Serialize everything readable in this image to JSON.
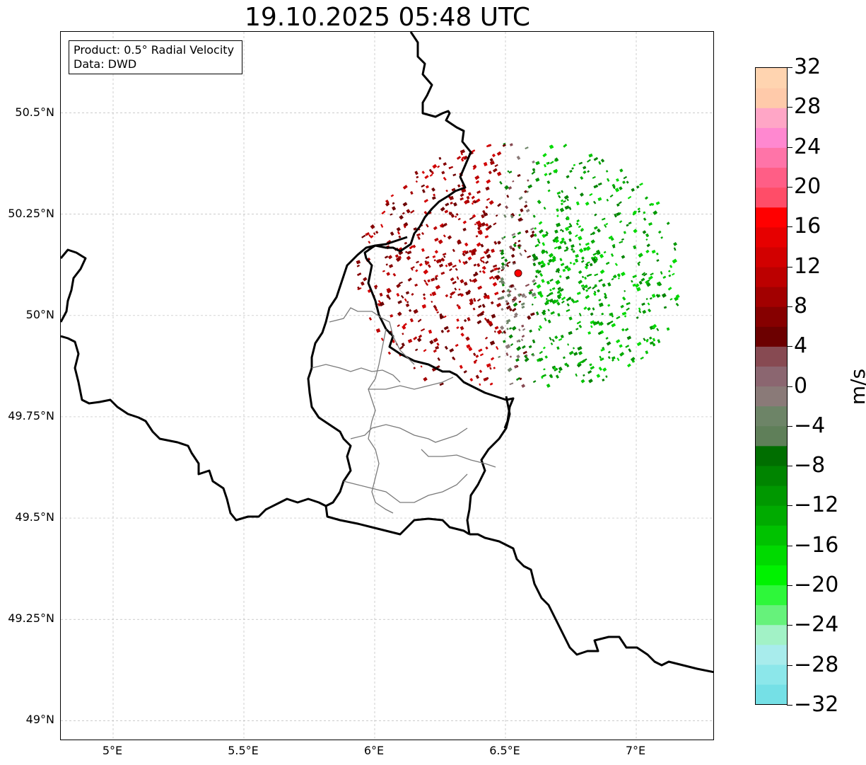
{
  "title": "19.10.2025 05:48 UTC",
  "legend": {
    "product": "Product: 0.5° Radial Velocity",
    "data": "Data: DWD"
  },
  "map": {
    "lon_range": [
      4.8,
      7.3
    ],
    "lat_range": [
      48.95,
      50.7
    ],
    "lon_ticks": [
      "5°E",
      "5.5°E",
      "6°E",
      "6.5°E",
      "7°E"
    ],
    "lat_ticks": [
      "50.5°N",
      "50.25°N",
      "50°N",
      "49.75°N",
      "49.5°N",
      "49.25°N",
      "49°N"
    ],
    "gridlines": true,
    "radar_site_color": "#ff0000"
  },
  "colorbar": {
    "label": "m/s",
    "ticks": [
      "32",
      "28",
      "24",
      "20",
      "16",
      "12",
      "8",
      "4",
      "0",
      "−4",
      "−8",
      "−12",
      "−16",
      "−20",
      "−24",
      "−28",
      "−32"
    ],
    "range": [
      -32,
      32
    ],
    "colors": [
      "#75e0e6",
      "#8ce7ea",
      "#a8ecec",
      "#a2f2c6",
      "#66f27b",
      "#2ef73a",
      "#00f200",
      "#00da00",
      "#00c200",
      "#00ab00",
      "#009800",
      "#008400",
      "#006e00",
      "#5f7f59",
      "#6d8467",
      "#8a7a78",
      "#8b6670",
      "#874a52",
      "#6c0000",
      "#860000",
      "#a20000",
      "#bc0000",
      "#d20000",
      "#e60000",
      "#ff0000",
      "#ff4d68",
      "#ff5e86",
      "#ff74a8",
      "#ff88d0",
      "#ffa6c6",
      "#ffcaaa",
      "#ffd4b0"
    ]
  }
}
